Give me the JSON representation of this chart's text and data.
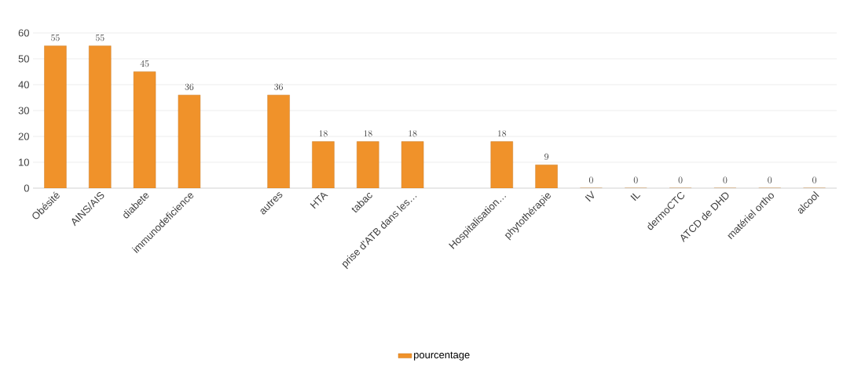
{
  "chart_data": {
    "type": "bar",
    "categories": [
      "Obésité",
      "AINS/AIS",
      "diabete",
      "immunodeficience",
      null,
      "autres",
      "HTA",
      "tabac",
      "prise d'ATB dans les…",
      null,
      "Hospitalisation…",
      "phytothérapie",
      "IV",
      "IL",
      "dermoCTC",
      "ATCD de DHD",
      "matériel ortho",
      "alcool"
    ],
    "series": [
      {
        "name": "pourcentage",
        "color": "#f0922a",
        "values": [
          55,
          55,
          45,
          36,
          null,
          36,
          18,
          18,
          18,
          null,
          18,
          9,
          0,
          0,
          0,
          0,
          0,
          0
        ]
      }
    ],
    "ylim": [
      0,
      60
    ],
    "yticks": [
      0,
      10,
      20,
      30,
      40,
      50,
      60
    ],
    "grid": "y",
    "legend": "bottom",
    "data_labels": true
  }
}
